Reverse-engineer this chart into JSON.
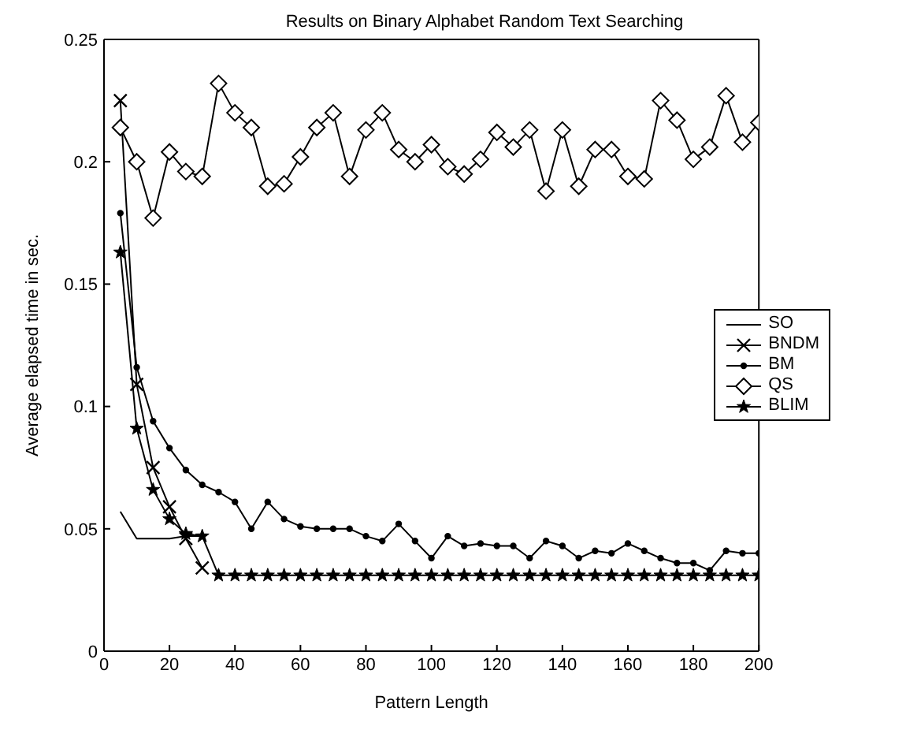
{
  "chart_data": {
    "type": "line",
    "title": "Results on Binary Alphabet Random Text Searching",
    "xlabel": "Pattern Length",
    "ylabel": "Average elapsed time in sec.",
    "xlim": [
      0,
      200
    ],
    "xticks": [
      0,
      20,
      40,
      60,
      80,
      100,
      120,
      140,
      160,
      180,
      200
    ],
    "ylim": [
      0,
      0.25
    ],
    "yticks": [
      0,
      0.05,
      0.1,
      0.15,
      0.2,
      0.25
    ],
    "legend": "right",
    "grid": false,
    "series": [
      {
        "name": "SO",
        "color": "#000000",
        "marker": "none",
        "x": [
          5,
          10,
          15,
          20,
          25,
          30
        ],
        "values": [
          0.057,
          0.046,
          0.046,
          0.046,
          0.047,
          0.047
        ]
      },
      {
        "name": "BNDM",
        "color": "#000000",
        "marker": "cross",
        "x": [
          5,
          10,
          15,
          20,
          25,
          30
        ],
        "values": [
          0.225,
          0.109,
          0.075,
          0.059,
          0.046,
          0.034
        ]
      },
      {
        "name": "BM",
        "color": "#000000",
        "marker": "circle",
        "x": [
          5,
          10,
          15,
          20,
          25,
          30,
          35,
          40,
          45,
          50,
          55,
          60,
          65,
          70,
          75,
          80,
          85,
          90,
          95,
          100,
          105,
          110,
          115,
          120,
          125,
          130,
          135,
          140,
          145,
          150,
          155,
          160,
          165,
          170,
          175,
          180,
          185,
          190,
          195,
          200
        ],
        "values": [
          0.179,
          0.116,
          0.094,
          0.083,
          0.074,
          0.068,
          0.065,
          0.061,
          0.05,
          0.061,
          0.054,
          0.051,
          0.05,
          0.05,
          0.05,
          0.047,
          0.045,
          0.052,
          0.045,
          0.038,
          0.047,
          0.043,
          0.044,
          0.043,
          0.043,
          0.038,
          0.045,
          0.043,
          0.038,
          0.041,
          0.04,
          0.044,
          0.041,
          0.038,
          0.036,
          0.036,
          0.033,
          0.041,
          0.04,
          0.04
        ]
      },
      {
        "name": "QS",
        "color": "#000000",
        "marker": "diamond",
        "x": [
          5,
          10,
          15,
          20,
          25,
          30,
          35,
          40,
          45,
          50,
          55,
          60,
          65,
          70,
          75,
          80,
          85,
          90,
          95,
          100,
          105,
          110,
          115,
          120,
          125,
          130,
          135,
          140,
          145,
          150,
          155,
          160,
          165,
          170,
          175,
          180,
          185,
          190,
          195,
          200
        ],
        "values": [
          0.214,
          0.2,
          0.177,
          0.204,
          0.196,
          0.194,
          0.232,
          0.22,
          0.214,
          0.19,
          0.191,
          0.202,
          0.214,
          0.22,
          0.194,
          0.213,
          0.22,
          0.205,
          0.2,
          0.207,
          0.198,
          0.195,
          0.201,
          0.212,
          0.206,
          0.213,
          0.188,
          0.213,
          0.19,
          0.205,
          0.205,
          0.194,
          0.193,
          0.225,
          0.217,
          0.201,
          0.206,
          0.227,
          0.208,
          0.216
        ]
      },
      {
        "name": "BLIM",
        "color": "#000000",
        "marker": "star",
        "x": [
          5,
          10,
          15,
          20,
          25,
          30,
          35,
          40,
          45,
          50,
          55,
          60,
          65,
          70,
          75,
          80,
          85,
          90,
          95,
          100,
          105,
          110,
          115,
          120,
          125,
          130,
          135,
          140,
          145,
          150,
          155,
          160,
          165,
          170,
          175,
          180,
          185,
          190,
          195,
          200
        ],
        "values": [
          0.163,
          0.091,
          0.066,
          0.054,
          0.048,
          0.047,
          0.031,
          0.031,
          0.031,
          0.031,
          0.031,
          0.031,
          0.031,
          0.031,
          0.031,
          0.031,
          0.031,
          0.031,
          0.031,
          0.031,
          0.031,
          0.031,
          0.031,
          0.031,
          0.031,
          0.031,
          0.031,
          0.031,
          0.031,
          0.031,
          0.031,
          0.031,
          0.031,
          0.031,
          0.031,
          0.031,
          0.031,
          0.031,
          0.031,
          0.031
        ]
      }
    ]
  }
}
